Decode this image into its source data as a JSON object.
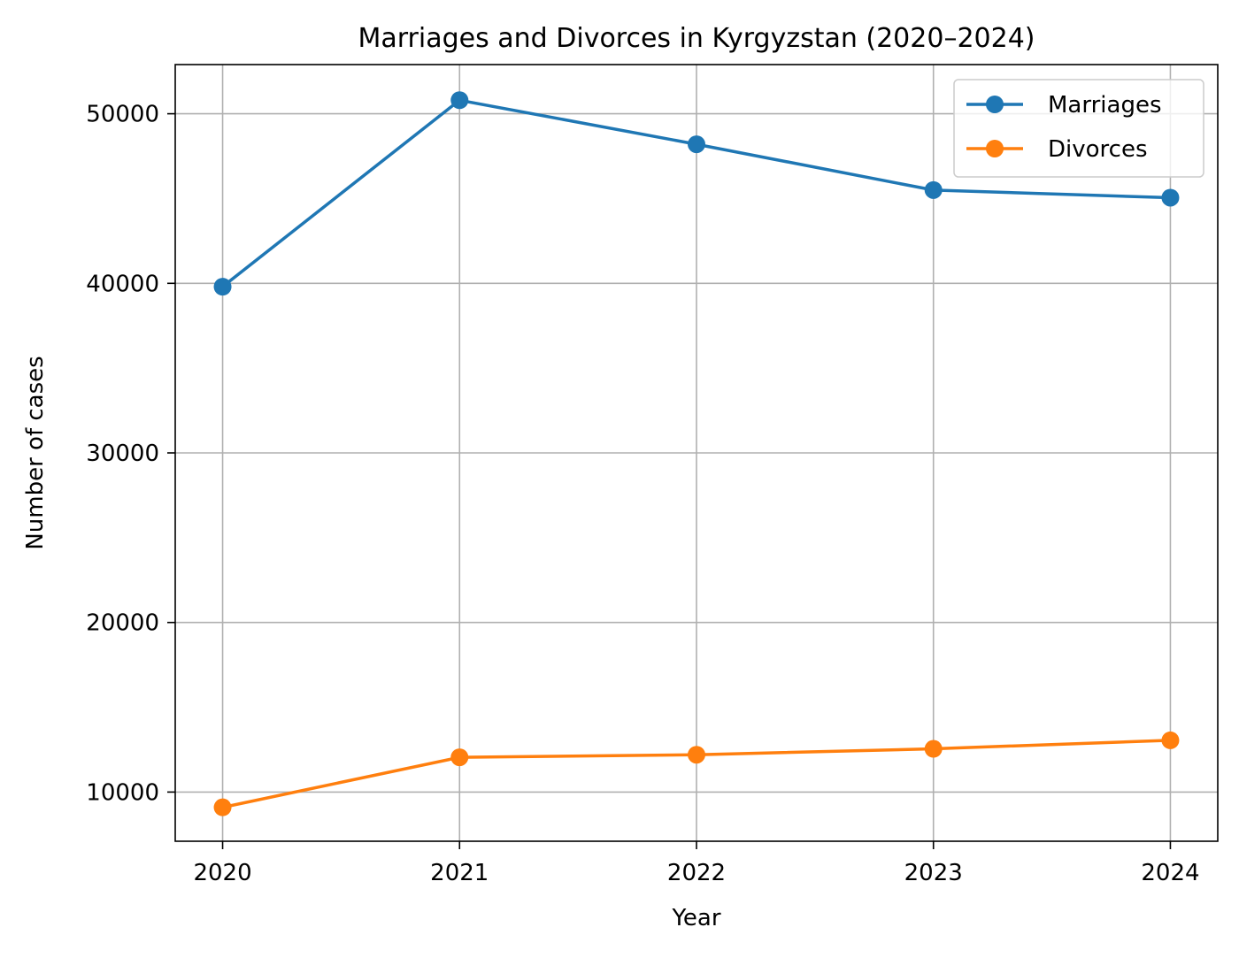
{
  "colors": {
    "marriages": "#1f77b4",
    "divorces": "#ff7f0e",
    "grid": "#b0b0b0",
    "axis": "#000000"
  },
  "chart_data": {
    "type": "line",
    "title": "Marriages and Divorces in Kyrgyzstan (2020–2024)",
    "xlabel": "Year",
    "ylabel": "Number of cases",
    "x": [
      2020,
      2021,
      2022,
      2023,
      2024
    ],
    "x_tick_labels": [
      "2020",
      "2021",
      "2022",
      "2023",
      "2024"
    ],
    "y_ticks": [
      10000,
      20000,
      30000,
      40000,
      50000
    ],
    "y_tick_labels": [
      "10000",
      "20000",
      "30000",
      "40000",
      "50000"
    ],
    "xlim": [
      2019.8,
      2024.2
    ],
    "ylim": [
      7100,
      52900
    ],
    "grid": true,
    "legend_position": "top-right",
    "marker": "circle",
    "series": [
      {
        "name": "Marriages",
        "color": "#1f77b4",
        "values": [
          39800,
          50800,
          48200,
          45500,
          45050
        ]
      },
      {
        "name": "Divorces",
        "color": "#ff7f0e",
        "values": [
          9100,
          12050,
          12200,
          12550,
          13050
        ]
      }
    ]
  }
}
